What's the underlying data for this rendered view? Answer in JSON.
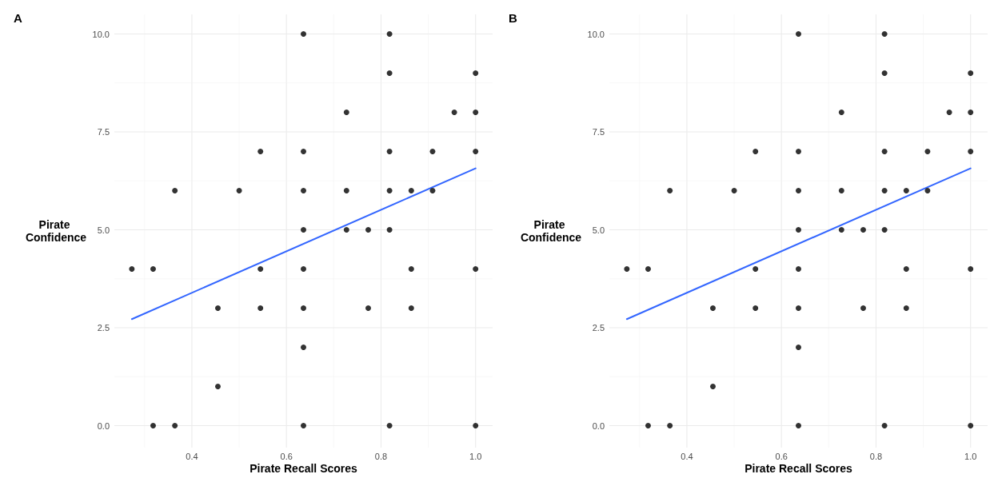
{
  "chart_data": [
    {
      "type": "scatter",
      "title": "A",
      "xlabel": "Pirate Recall Scores",
      "ylabel": "Pirate Confidence",
      "xlim": [
        0.236,
        1.036
      ],
      "ylim": [
        -0.5,
        10.5
      ],
      "xticks": [
        0.4,
        0.6,
        0.8,
        {
          "value": 1,
          "label": "1.0"
        }
      ],
      "yticks": [
        {
          "value": 0,
          "label": "0.0"
        },
        {
          "value": 2.5,
          "label": "2.5"
        },
        {
          "value": 5,
          "label": "5.0"
        },
        {
          "value": 7.5,
          "label": "7.5"
        },
        {
          "value": 10,
          "label": "10.0"
        }
      ],
      "grid": true,
      "series": [
        {
          "type": "scatter",
          "marker": "circle",
          "color": "#000000",
          "x": [
            0.273,
            0.318,
            0.318,
            0.364,
            0.364,
            0.455,
            0.455,
            0.5,
            0.545,
            0.545,
            0.545,
            0.636,
            0.636,
            0.636,
            0.636,
            0.636,
            0.636,
            0.636,
            0.636,
            0.727,
            0.727,
            0.727,
            0.773,
            0.773,
            0.818,
            0.818,
            0.818,
            0.818,
            0.818,
            0.818,
            0.864,
            0.864,
            0.864,
            0.909,
            0.909,
            0.955,
            1,
            1,
            1,
            1,
            1
          ],
          "values": [
            4,
            4,
            0,
            6,
            0,
            3,
            1,
            6,
            7,
            4,
            3,
            10,
            7,
            6,
            5,
            4,
            3,
            2,
            0,
            8,
            6,
            5,
            5,
            3,
            10,
            9,
            7,
            6,
            5,
            0,
            6,
            4,
            3,
            7,
            6,
            8,
            9,
            8,
            7,
            4,
            0
          ]
        },
        {
          "type": "line",
          "color": "#3366ff",
          "line_style": "solid",
          "x": [
            0.273,
            1
          ],
          "values": [
            2.72,
            6.57
          ]
        }
      ]
    },
    {
      "type": "scatter",
      "title": "B",
      "xlabel": "Pirate Recall Scores",
      "ylabel": "Pirate Confidence",
      "xlim": [
        0.236,
        1.036
      ],
      "ylim": [
        -0.5,
        10.5
      ],
      "xticks": [
        0.4,
        0.6,
        0.8,
        {
          "value": 1,
          "label": "1.0"
        }
      ],
      "yticks": [
        {
          "value": 0,
          "label": "0.0"
        },
        {
          "value": 2.5,
          "label": "2.5"
        },
        {
          "value": 5,
          "label": "5.0"
        },
        {
          "value": 7.5,
          "label": "7.5"
        },
        {
          "value": 10,
          "label": "10.0"
        }
      ],
      "grid": true,
      "series": [
        {
          "type": "scatter",
          "marker": "circle",
          "color": "#000000",
          "x": [
            0.273,
            0.318,
            0.318,
            0.364,
            0.364,
            0.455,
            0.455,
            0.5,
            0.545,
            0.545,
            0.545,
            0.636,
            0.636,
            0.636,
            0.636,
            0.636,
            0.636,
            0.636,
            0.636,
            0.727,
            0.727,
            0.727,
            0.773,
            0.773,
            0.818,
            0.818,
            0.818,
            0.818,
            0.818,
            0.818,
            0.864,
            0.864,
            0.864,
            0.909,
            0.909,
            0.955,
            1,
            1,
            1,
            1,
            1
          ],
          "values": [
            4,
            4,
            0,
            6,
            0,
            3,
            1,
            6,
            7,
            4,
            3,
            10,
            7,
            6,
            5,
            4,
            3,
            2,
            0,
            8,
            6,
            5,
            5,
            3,
            10,
            9,
            7,
            6,
            5,
            0,
            6,
            4,
            3,
            7,
            6,
            8,
            9,
            8,
            7,
            4,
            0
          ]
        },
        {
          "type": "line",
          "color": "#3366ff",
          "line_style": "solid",
          "x": [
            0.273,
            1
          ],
          "values": [
            2.72,
            6.57
          ]
        }
      ]
    }
  ]
}
